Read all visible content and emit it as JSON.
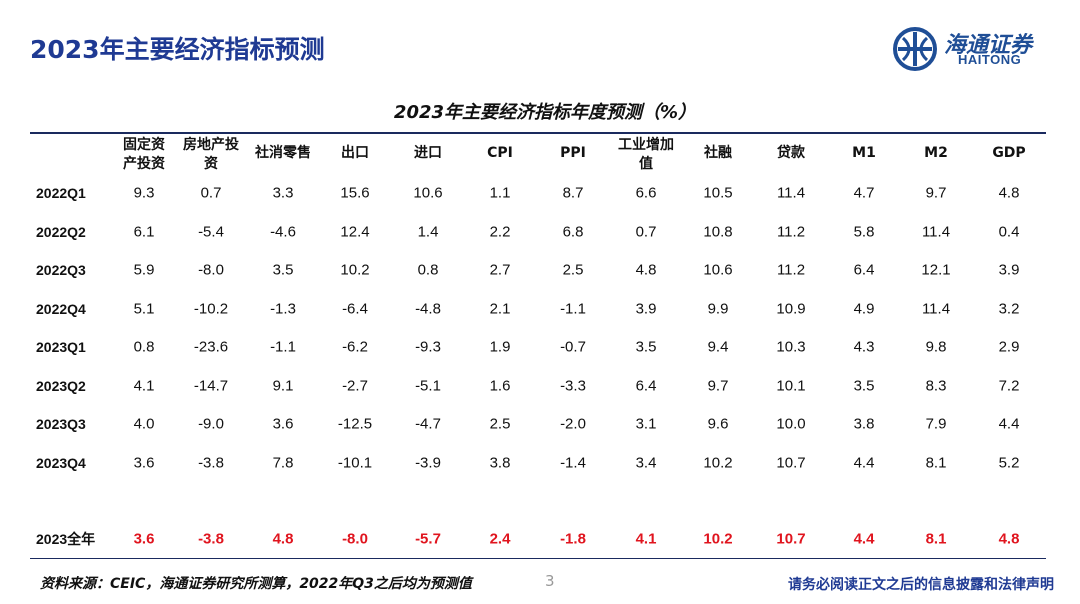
{
  "header": {
    "title": "2023年主要经济指标预测",
    "logo_cn": "海通证券",
    "logo_en": "HAITONG"
  },
  "table": {
    "title": "2023年主要经济指标年度预测（%）",
    "columns": [
      "固定资产投资",
      "房地产投资",
      "社消零售",
      "出口",
      "进口",
      "CPI",
      "PPI",
      "工业增加值",
      "社融",
      "贷款",
      "M1",
      "M2",
      "GDP"
    ],
    "rows": [
      {
        "label": "2022Q1",
        "values": [
          "9.3",
          "0.7",
          "3.3",
          "15.6",
          "10.6",
          "1.1",
          "8.7",
          "6.6",
          "10.5",
          "11.4",
          "4.7",
          "9.7",
          "4.8"
        ]
      },
      {
        "label": "2022Q2",
        "values": [
          "6.1",
          "-5.4",
          "-4.6",
          "12.4",
          "1.4",
          "2.2",
          "6.8",
          "0.7",
          "10.8",
          "11.2",
          "5.8",
          "11.4",
          "0.4"
        ]
      },
      {
        "label": "2022Q3",
        "values": [
          "5.9",
          "-8.0",
          "3.5",
          "10.2",
          "0.8",
          "2.7",
          "2.5",
          "4.8",
          "10.6",
          "11.2",
          "6.4",
          "12.1",
          "3.9"
        ]
      },
      {
        "label": "2022Q4",
        "values": [
          "5.1",
          "-10.2",
          "-1.3",
          "-6.4",
          "-4.8",
          "2.1",
          "-1.1",
          "3.9",
          "9.9",
          "10.9",
          "4.9",
          "11.4",
          "3.2"
        ]
      },
      {
        "label": "2023Q1",
        "values": [
          "0.8",
          "-23.6",
          "-1.1",
          "-6.2",
          "-9.3",
          "1.9",
          "-0.7",
          "3.5",
          "9.4",
          "10.3",
          "4.3",
          "9.8",
          "2.9"
        ]
      },
      {
        "label": "2023Q2",
        "values": [
          "4.1",
          "-14.7",
          "9.1",
          "-2.7",
          "-5.1",
          "1.6",
          "-3.3",
          "6.4",
          "9.7",
          "10.1",
          "3.5",
          "8.3",
          "7.2"
        ]
      },
      {
        "label": "2023Q3",
        "values": [
          "4.0",
          "-9.0",
          "3.6",
          "-12.5",
          "-4.7",
          "2.5",
          "-2.0",
          "3.1",
          "9.6",
          "10.0",
          "3.8",
          "7.9",
          "4.4"
        ]
      },
      {
        "label": "2023Q4",
        "values": [
          "3.6",
          "-3.8",
          "7.8",
          "-10.1",
          "-3.9",
          "3.8",
          "-1.4",
          "3.4",
          "10.2",
          "10.7",
          "4.4",
          "8.1",
          "5.2"
        ]
      }
    ],
    "total": {
      "label": "2023全年",
      "values": [
        "3.6",
        "-3.8",
        "4.8",
        "-8.0",
        "-5.7",
        "2.4",
        "-1.8",
        "4.1",
        "10.2",
        "10.7",
        "4.4",
        "8.1",
        "4.8"
      ]
    }
  },
  "footer": {
    "source": "资料来源：CEIC，海通证券研究所测算，2022年Q3之后均为预测值",
    "page": "3",
    "disclaimer": "请务必阅读正文之后的信息披露和法律声明"
  }
}
